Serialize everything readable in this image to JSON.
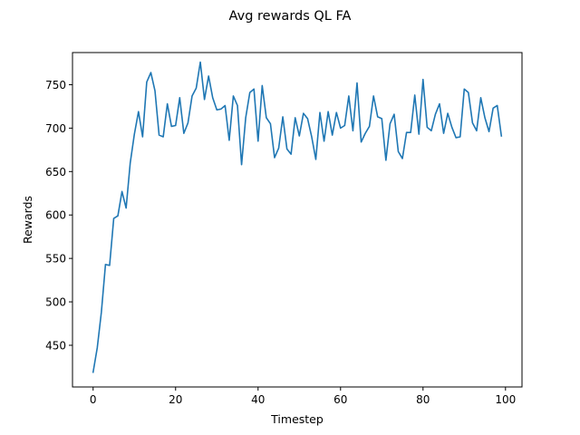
{
  "chart_data": {
    "type": "line",
    "title": "Avg rewards QL FA",
    "xlabel": "Timestep",
    "ylabel": "Rewards",
    "xlim": [
      -5,
      104
    ],
    "ylim": [
      402,
      787
    ],
    "xticks": [
      0,
      20,
      40,
      60,
      80,
      100
    ],
    "yticks": [
      450,
      500,
      550,
      600,
      650,
      700,
      750
    ],
    "grid": false,
    "line_color": "#1f77b4",
    "series": [
      {
        "x": [
          0,
          1,
          2,
          3,
          4,
          5,
          6,
          7,
          8,
          9,
          10,
          11,
          12,
          13,
          14,
          15,
          16,
          17,
          18,
          19,
          20,
          21,
          22,
          23,
          24,
          25,
          26,
          27,
          28,
          29,
          30,
          31,
          32,
          33,
          34,
          35,
          36,
          37,
          38,
          39,
          40,
          41,
          42,
          43,
          44,
          45,
          46,
          47,
          48,
          49,
          50,
          51,
          52,
          53,
          54,
          55,
          56,
          57,
          58,
          59,
          60,
          61,
          62,
          63,
          64,
          65,
          66,
          67,
          68,
          69,
          70,
          71,
          72,
          73,
          74,
          75,
          76,
          77,
          78,
          79,
          80,
          81,
          82,
          83,
          84,
          85,
          86,
          87,
          88,
          89,
          90,
          91,
          92,
          93,
          94,
          95,
          96,
          97,
          98,
          99
        ],
        "values": [
          419,
          447,
          488,
          543,
          542,
          596,
          599,
          627,
          608,
          660,
          693,
          719,
          690,
          753,
          764,
          743,
          692,
          690,
          728,
          702,
          703,
          735,
          694,
          706,
          737,
          746,
          776,
          733,
          760,
          735,
          721,
          722,
          726,
          686,
          737,
          726,
          658,
          712,
          741,
          745,
          685,
          749,
          712,
          705,
          666,
          677,
          713,
          676,
          670,
          712,
          691,
          717,
          711,
          690,
          664,
          718,
          685,
          719,
          692,
          718,
          700,
          703,
          737,
          697,
          752,
          684,
          694,
          702,
          737,
          713,
          711,
          663,
          705,
          716,
          673,
          665,
          695,
          695,
          738,
          693,
          756,
          701,
          697,
          716,
          728,
          694,
          717,
          701,
          689,
          690,
          745,
          741,
          706,
          697,
          735,
          712,
          696,
          723,
          726,
          691
        ]
      }
    ]
  }
}
